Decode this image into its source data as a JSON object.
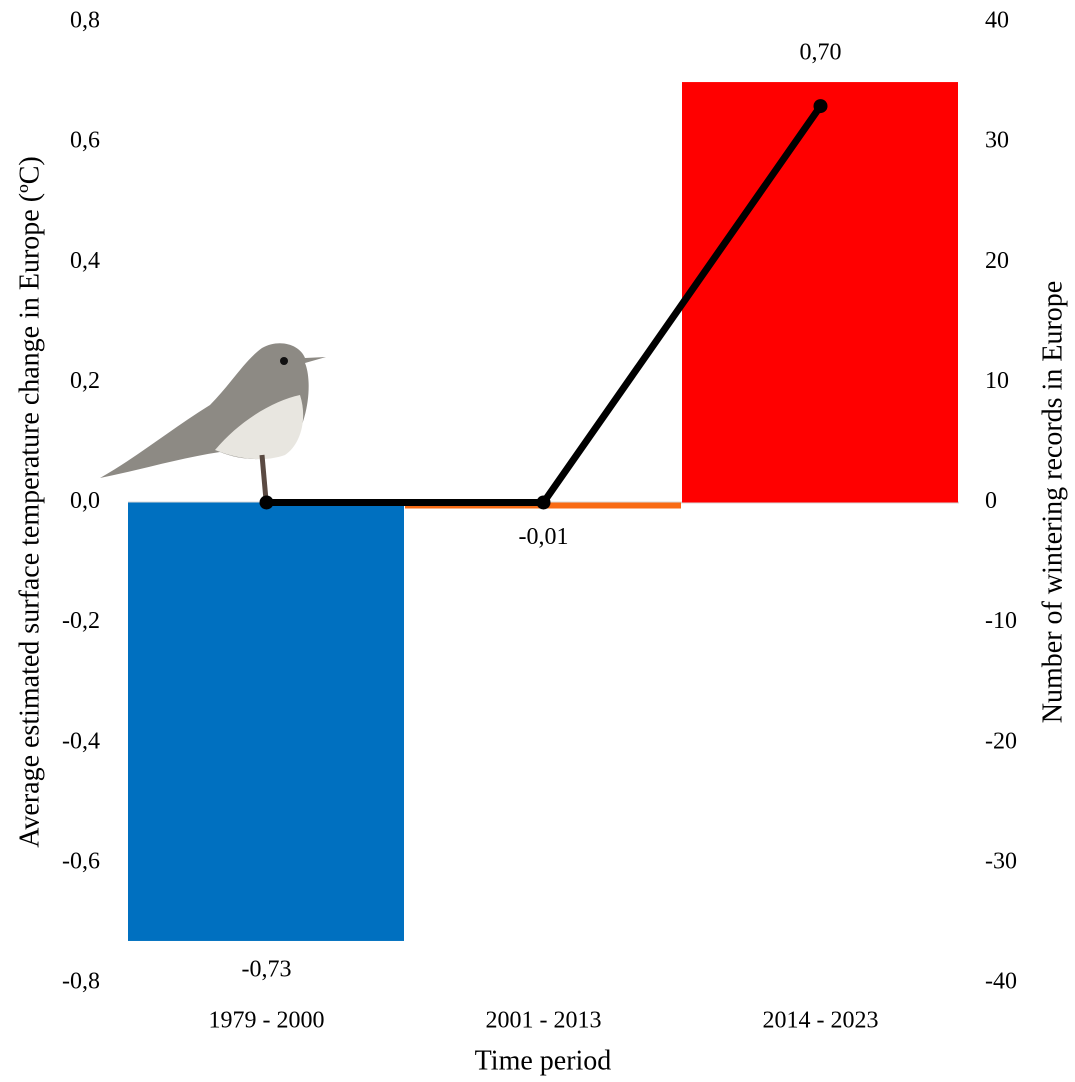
{
  "chart_data": {
    "type": "bar",
    "x_label": "Time period",
    "y_label": "Average estimated surface temperature change in Europe (ºC)",
    "y2_label": "Number of wintering records in Europe",
    "categories": [
      "1979 - 2000",
      "2001 - 2013",
      "2014 - 2023"
    ],
    "series": [
      {
        "type": "bar",
        "values": [
          -0.73,
          -0.01,
          0.7
        ],
        "value_labels": [
          "-0,73",
          "-0,01",
          "0,70"
        ],
        "colors": [
          "#0070c0",
          "#f96b14",
          "#ff0000"
        ]
      },
      {
        "type": "line",
        "axis": "y2",
        "values": [
          0,
          0,
          33
        ],
        "color": "#000000"
      }
    ],
    "ylim": [
      -0.8,
      0.8
    ],
    "yticks": [
      {
        "value": -0.8,
        "label": "-0,8"
      },
      {
        "value": -0.6,
        "label": "-0,6"
      },
      {
        "value": -0.4,
        "label": "-0,4"
      },
      {
        "value": -0.2,
        "label": "-0,2"
      },
      {
        "value": 0,
        "label": "0,0"
      },
      {
        "value": 0.2,
        "label": "0,2"
      },
      {
        "value": 0.4,
        "label": "0,4"
      },
      {
        "value": 0.6,
        "label": "0,6"
      },
      {
        "value": 0.8,
        "label": "0,8"
      }
    ],
    "y2lim": [
      -40,
      40
    ],
    "y2ticks": [
      -40,
      -30,
      -20,
      -10,
      0,
      10,
      20,
      30,
      40
    ]
  }
}
